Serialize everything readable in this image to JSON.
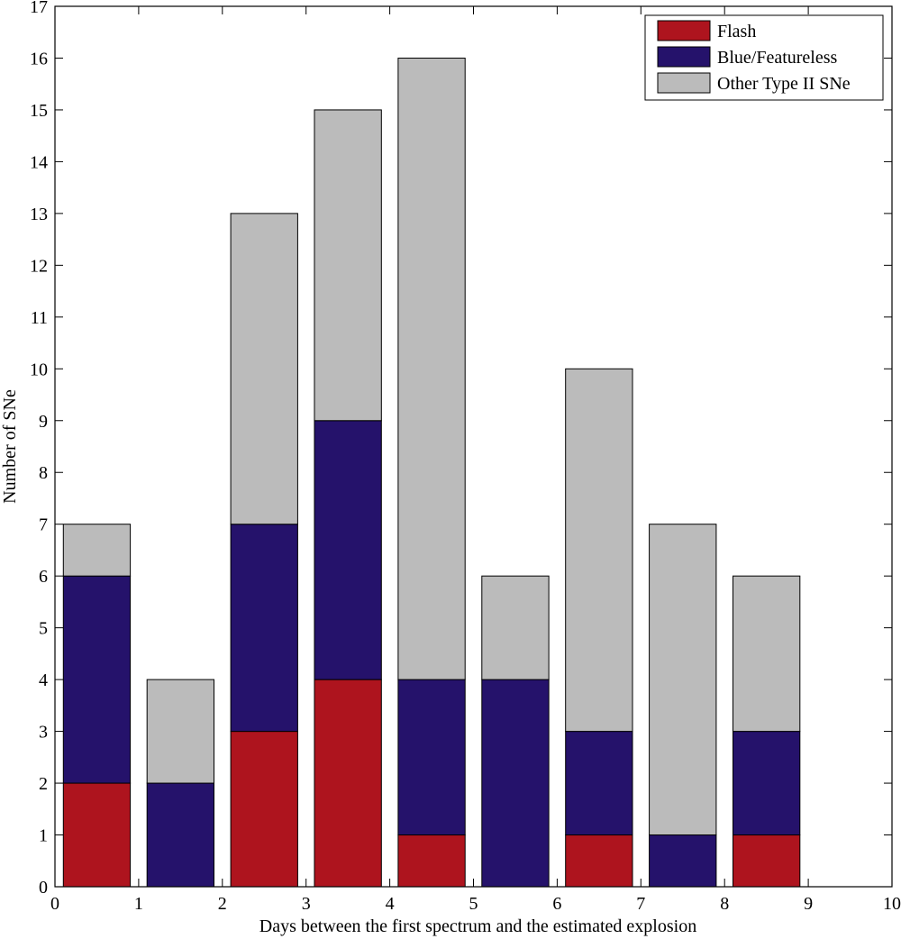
{
  "chart_data": {
    "type": "bar",
    "stacked": true,
    "title": "",
    "xlabel": "Days between the first spectrum and the estimated explosion",
    "ylabel": "Number of SNe",
    "xlim": [
      0,
      10
    ],
    "ylim": [
      0,
      17
    ],
    "x_ticks": [
      0,
      1,
      2,
      3,
      4,
      5,
      6,
      7,
      8,
      9,
      10
    ],
    "y_ticks": [
      0,
      1,
      2,
      3,
      4,
      5,
      6,
      7,
      8,
      9,
      10,
      11,
      12,
      13,
      14,
      15,
      16,
      17
    ],
    "bins": [
      [
        0,
        1
      ],
      [
        1,
        2
      ],
      [
        2,
        3
      ],
      [
        3,
        4
      ],
      [
        4,
        5
      ],
      [
        5,
        6
      ],
      [
        6,
        7
      ],
      [
        7,
        8
      ],
      [
        8,
        9
      ]
    ],
    "bar_fraction": 0.8,
    "grid": false,
    "legend_position": "top-right",
    "series": [
      {
        "name": "Flash",
        "color": "#ae141e",
        "values": [
          2,
          0,
          3,
          4,
          1,
          0,
          1,
          0,
          1
        ]
      },
      {
        "name": "Blue/Featureless",
        "color": "#25126b",
        "values": [
          4,
          2,
          4,
          5,
          3,
          4,
          2,
          1,
          2
        ]
      },
      {
        "name": "Other Type II SNe",
        "color": "#bbbbbb",
        "values": [
          1,
          2,
          6,
          6,
          12,
          2,
          7,
          6,
          3
        ]
      }
    ]
  }
}
